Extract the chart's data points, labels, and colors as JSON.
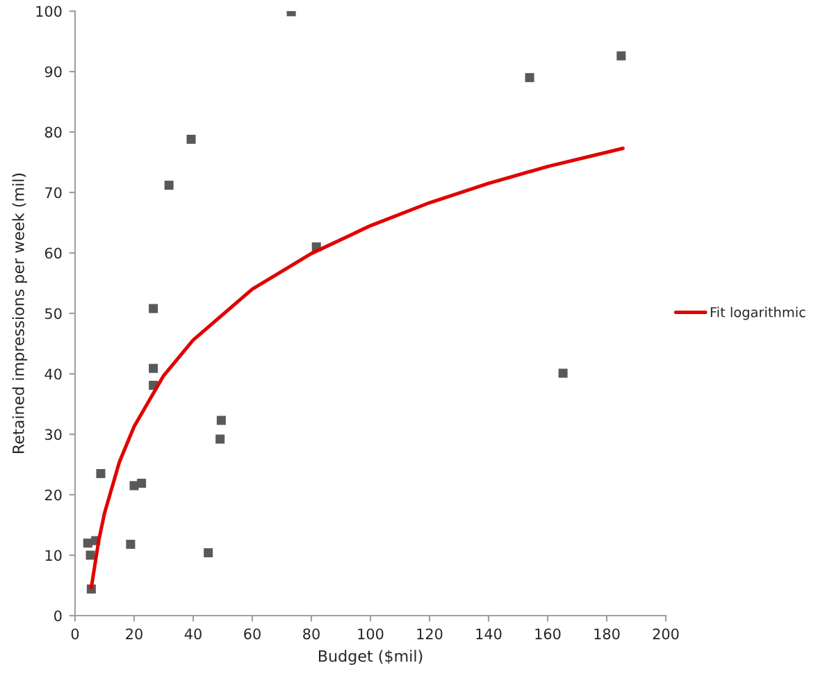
{
  "chart_data": {
    "type": "scatter",
    "xlabel": "Budget ($mil)",
    "ylabel": "Retained impressions per week (mil)",
    "xlim": [
      0,
      200
    ],
    "xticks": [
      0,
      20,
      40,
      60,
      80,
      100,
      120,
      140,
      160,
      180,
      200
    ],
    "ylim": [
      0,
      100
    ],
    "yticks": [
      0,
      10,
      20,
      30,
      40,
      50,
      60,
      70,
      80,
      90,
      100
    ],
    "grid": false,
    "legend": "right",
    "marker": "square",
    "series": [
      {
        "color": "#595959",
        "x": [
          4.3,
          5.2,
          5.5,
          7.0,
          8.7,
          18.8,
          20.0,
          22.5,
          26.5,
          26.5,
          26.5,
          31.8,
          39.3,
          45.1,
          49.5,
          49.1,
          73.2,
          81.7,
          153.9,
          184.9,
          165.2
        ],
        "values": [
          12.0,
          10.0,
          4.4,
          12.4,
          23.5,
          11.8,
          21.5,
          21.9,
          50.8,
          40.9,
          38.1,
          71.2,
          78.8,
          10.4,
          32.3,
          29.2,
          99.9,
          61.0,
          89.0,
          92.6,
          40.1
        ]
      },
      {
        "type": "line",
        "name": "Fit logarithmic",
        "color": "#e00000",
        "marker": "none",
        "line_style": "solid",
        "x": [
          5.5,
          8,
          10,
          15,
          20,
          30,
          40,
          60,
          80,
          100,
          120,
          140,
          160,
          185.5
        ],
        "values": [
          4.6,
          12.4,
          17.0,
          25.4,
          31.3,
          39.7,
          45.6,
          54.0,
          59.9,
          64.5,
          68.3,
          71.5,
          74.3,
          77.3
        ]
      }
    ]
  }
}
